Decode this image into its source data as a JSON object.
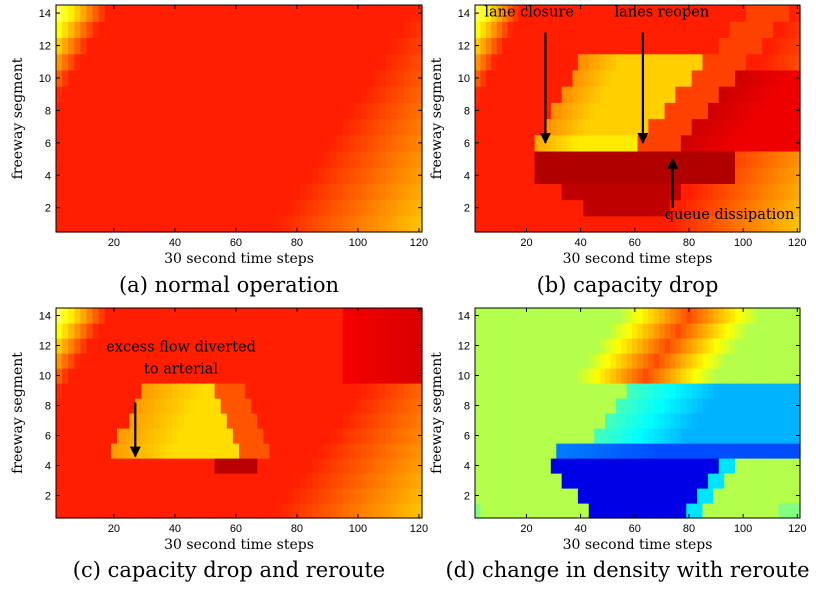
{
  "chart_data": [
    {
      "type": "heatmap",
      "panel_id": "a",
      "caption": "(a) normal operation",
      "xlabel": "30 second time steps",
      "ylabel": "freeway segment",
      "xlim": [
        1,
        121
      ],
      "ylim": [
        0.5,
        14.5
      ],
      "xticks": [
        "20",
        "40",
        "60",
        "80",
        "100",
        "120"
      ],
      "yticks": [
        "2",
        "4",
        "6",
        "8",
        "10",
        "12",
        "14"
      ],
      "colormap": "hot",
      "annotations": []
    },
    {
      "type": "heatmap",
      "panel_id": "b",
      "caption": "(b) capacity drop",
      "xlabel": "30 second time steps",
      "ylabel": "freeway segment",
      "xlim": [
        1,
        121
      ],
      "ylim": [
        0.5,
        14.5
      ],
      "xticks": [
        "20",
        "40",
        "60",
        "80",
        "100",
        "120"
      ],
      "yticks": [
        "2",
        "4",
        "6",
        "8",
        "10",
        "12",
        "14"
      ],
      "colormap": "hot",
      "annotations": [
        {
          "lines": [
            "lane closure"
          ],
          "text_x": 21,
          "text_y": 13.8,
          "arrow_from": [
            27,
            12.8
          ],
          "arrow_to": [
            27,
            6.0
          ],
          "color": "#000000"
        },
        {
          "lines": [
            "lanes reopen"
          ],
          "text_x": 70,
          "text_y": 13.8,
          "arrow_from": [
            63,
            12.8
          ],
          "arrow_to": [
            63,
            6.0
          ],
          "color": "#000000"
        },
        {
          "lines": [
            "queue dissipation"
          ],
          "text_x": 95,
          "text_y": 1.3,
          "arrow_from": [
            74,
            2.0
          ],
          "arrow_to": [
            74,
            5.0
          ],
          "color": "#000000"
        }
      ]
    },
    {
      "type": "heatmap",
      "panel_id": "c",
      "caption": "(c) capacity drop and reroute",
      "xlabel": "30 second time steps",
      "ylabel": "freeway segment",
      "xlim": [
        1,
        121
      ],
      "ylim": [
        0.5,
        14.5
      ],
      "xticks": [
        "20",
        "40",
        "60",
        "80",
        "100",
        "120"
      ],
      "yticks": [
        "2",
        "4",
        "6",
        "8",
        "10",
        "12",
        "14"
      ],
      "colormap": "hot",
      "annotations": [
        {
          "lines": [
            "excess flow diverted",
            "to arterial"
          ],
          "text_x": 42,
          "text_y": 11.6,
          "arrow_from": [
            27,
            8.2
          ],
          "arrow_to": [
            27,
            4.6
          ],
          "color": "#000000"
        }
      ]
    },
    {
      "type": "heatmap",
      "panel_id": "d",
      "caption": "(d) change in density with reroute",
      "xlabel": "30 second time steps",
      "ylabel": "freeway segment",
      "xlim": [
        1,
        121
      ],
      "ylim": [
        0.5,
        14.5
      ],
      "xticks": [
        "20",
        "40",
        "60",
        "80",
        "100",
        "120"
      ],
      "yticks": [
        "2",
        "4",
        "6",
        "8",
        "10",
        "12",
        "14"
      ],
      "colormap": "jet",
      "annotations": []
    }
  ]
}
